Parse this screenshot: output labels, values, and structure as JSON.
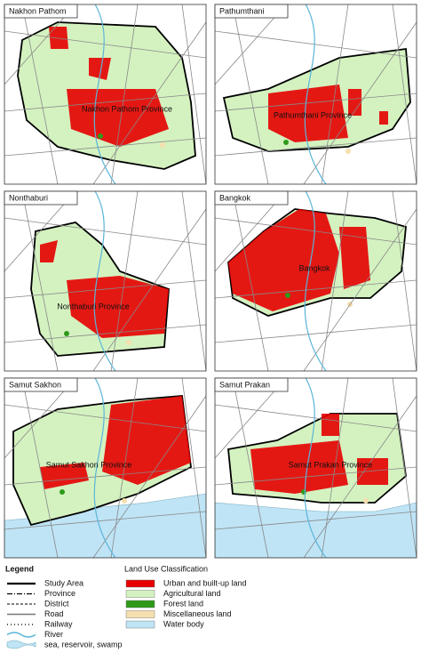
{
  "panels": [
    {
      "title": "Nakhon Pathom",
      "label": "Nakhon Pathom Province"
    },
    {
      "title": "Pathumthani",
      "label": "Pathumthani Province"
    },
    {
      "title": "Nonthaburi",
      "label": "Nonthaburi Province"
    },
    {
      "title": "Bangkok",
      "label": "Bangkok"
    },
    {
      "title": "Samut Sakhon",
      "label": "Samut Sakhon Province"
    },
    {
      "title": "Samut Prakan",
      "label": "Samut Prakan Province"
    }
  ],
  "legend": {
    "title": "Legend",
    "items": [
      "Study Area",
      "Province",
      "District",
      "Road",
      "Railway",
      "River",
      "sea, reservoir, swamp"
    ]
  },
  "land_use": {
    "title": "Land Use Classification",
    "items": [
      {
        "label": "Urban and built-up land",
        "color": "#e60000"
      },
      {
        "label": "Agricultural land",
        "color": "#d4f2c0"
      },
      {
        "label": "Forest land",
        "color": "#2e9a1a"
      },
      {
        "label": "Miscellaneous land",
        "color": "#f6dfae"
      },
      {
        "label": "Water body",
        "color": "#bfe4f6"
      }
    ]
  }
}
